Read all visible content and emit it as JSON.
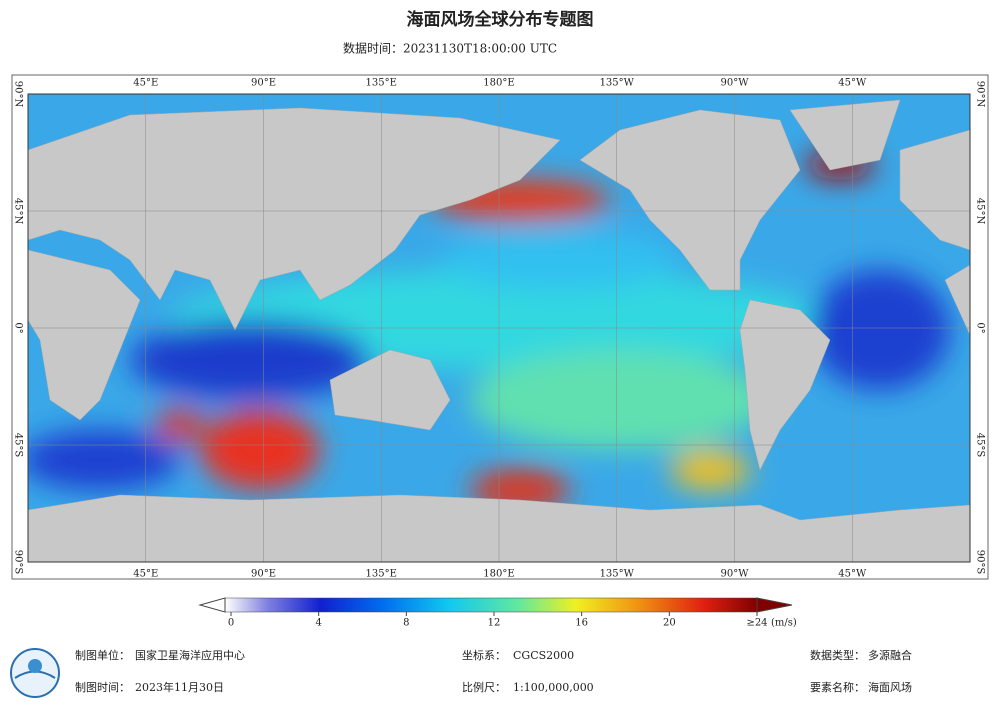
{
  "header": {
    "title": "海面风场全球分布专题图",
    "subtitle": "数据时间：20231130T18:00:00 UTC"
  },
  "map": {
    "lon_labels": [
      "45°E",
      "90°E",
      "135°E",
      "180°E",
      "135°W",
      "90°W",
      "45°W"
    ],
    "lat_labels": [
      "90°N",
      "45°N",
      "0°",
      "45°S",
      "90°S"
    ]
  },
  "colorbar": {
    "ticks": [
      0,
      4,
      8,
      12,
      16,
      20,
      {
        "value": 24,
        "label": "≥24"
      }
    ],
    "unit": "(m/s)"
  },
  "footer": {
    "unit_label": "制图单位：",
    "unit": "国家卫星海洋应用中心",
    "crs_label": "坐标系：",
    "crs": "CGCS2000",
    "data_type_label": "数据类型：",
    "data_type": "多源融合",
    "date_label": "制图时间：",
    "date": "2023年11月30日",
    "scale_label": "比例尺：",
    "scale": "1:100,000,000",
    "element_label": "要素名称：",
    "element": "海面风场"
  }
}
